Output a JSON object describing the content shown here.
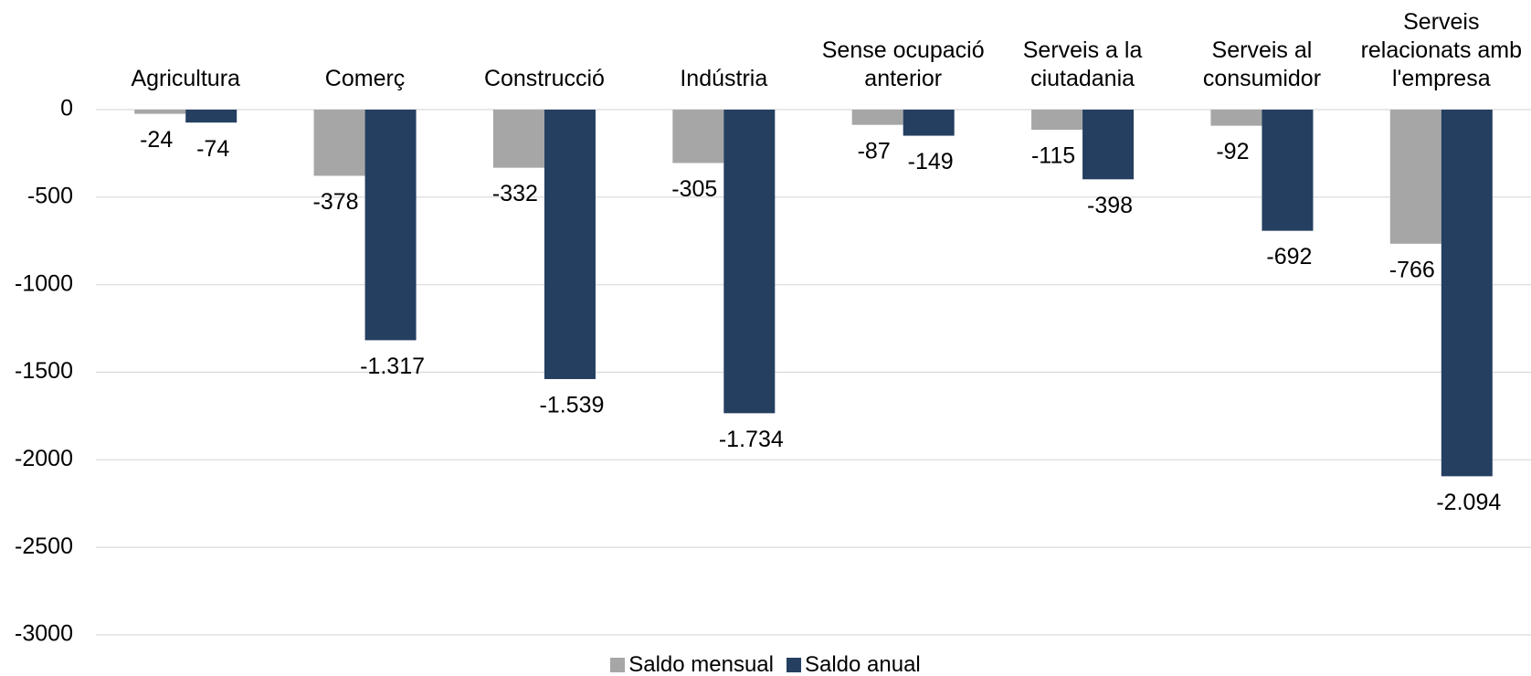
{
  "chart_data": {
    "type": "bar",
    "categories": [
      "Agricultura",
      "Comerç",
      "Construcció",
      "Indústria",
      "Sense ocupació anterior",
      "Serveis a la ciutadania",
      "Serveis al consumidor",
      "Serveis relacionats amb l'empresa"
    ],
    "series": [
      {
        "name": "Saldo mensual",
        "color": "#a6a6a6",
        "values": [
          -24,
          -378,
          -332,
          -305,
          -87,
          -115,
          -92,
          -766
        ],
        "value_labels": [
          "-24",
          "-378",
          "-332",
          "-305",
          "-87",
          "-115",
          "-92",
          "-766"
        ]
      },
      {
        "name": "Saldo anual",
        "color": "#243f60",
        "values": [
          -74,
          -1317,
          -1539,
          -1734,
          -149,
          -398,
          -692,
          -2094
        ],
        "value_labels": [
          "-74",
          "-1.317",
          "-1.539",
          "-1.734",
          "-149",
          "-398",
          "-692",
          "-2.094"
        ]
      }
    ],
    "ylim": [
      -3000,
      0
    ],
    "yticks": [
      0,
      -500,
      -1000,
      -1500,
      -2000,
      -2500,
      -3000
    ],
    "grid": true,
    "legend": "bottom"
  }
}
